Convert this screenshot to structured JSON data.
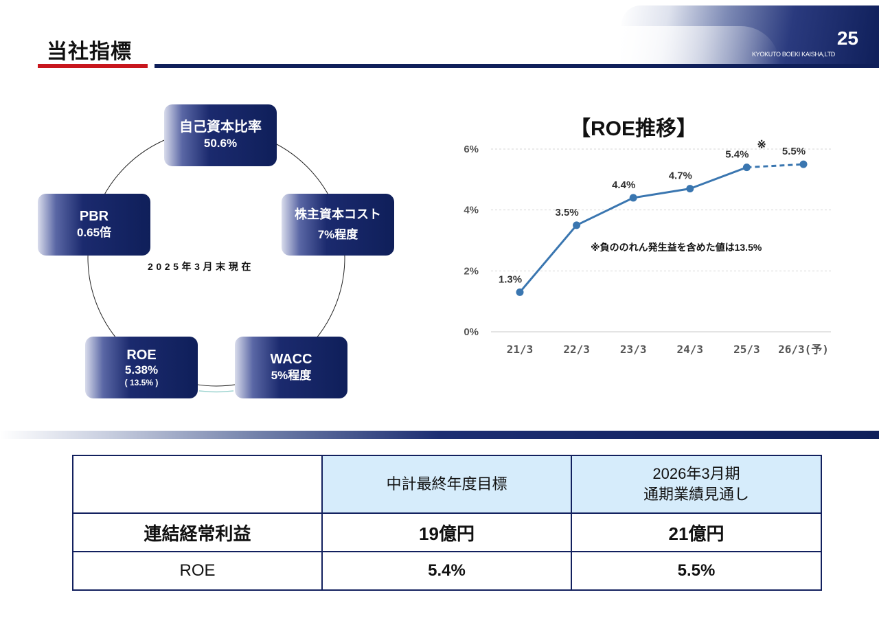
{
  "header": {
    "title": "当社指標",
    "page_number": "25",
    "company": "KYOKUTO BOEKI KAISHA,LTD",
    "colors": {
      "accent_red": "#c8161d",
      "navy": "#0f1f5a"
    }
  },
  "cycle": {
    "as_of": "2025年3月末現在",
    "nodes": [
      {
        "id": "equity-ratio",
        "title": "自己資本比率",
        "value": "50.6%",
        "sub": ""
      },
      {
        "id": "cost-of-equity",
        "title": "株主資本コスト",
        "value": "7%程度",
        "sub": ""
      },
      {
        "id": "wacc",
        "title": "WACC",
        "value": "5%程度",
        "sub": ""
      },
      {
        "id": "roe",
        "title": "ROE",
        "value": "5.38%",
        "sub": "( 13.5% )"
      },
      {
        "id": "pbr",
        "title": "PBR",
        "value": "0.65倍",
        "sub": ""
      }
    ]
  },
  "chart_data": {
    "type": "line",
    "title": "【ROE推移】",
    "categories": [
      "21/3",
      "22/3",
      "23/3",
      "24/3",
      "25/3",
      "26/3(予)"
    ],
    "series": [
      {
        "values": [
          1.3,
          3.5,
          4.4,
          4.7,
          5.4,
          5.5
        ]
      }
    ],
    "data_labels": [
      "1.3%",
      "3.5%",
      "4.4%",
      "4.7%",
      "5.4%",
      "5.5%"
    ],
    "forecast_from_index": 4,
    "yticks": [
      "0%",
      "2%",
      "4%",
      "6%"
    ],
    "ylim": [
      0,
      6
    ],
    "grid": true,
    "annotation_mark": "※",
    "note": "※負ののれん発生益を含めた値は13.5%",
    "line_color": "#3a76b0"
  },
  "table": {
    "header": [
      "",
      "中計最終年度目標",
      "2026年3月期\n通期業績見通し"
    ],
    "header_fill": "#d6ecfb",
    "rows": [
      {
        "label": "連結経常利益",
        "target": "19億円",
        "forecast": "21億円"
      },
      {
        "label": "ROE",
        "target": "5.4%",
        "forecast": "5.5%"
      }
    ]
  }
}
